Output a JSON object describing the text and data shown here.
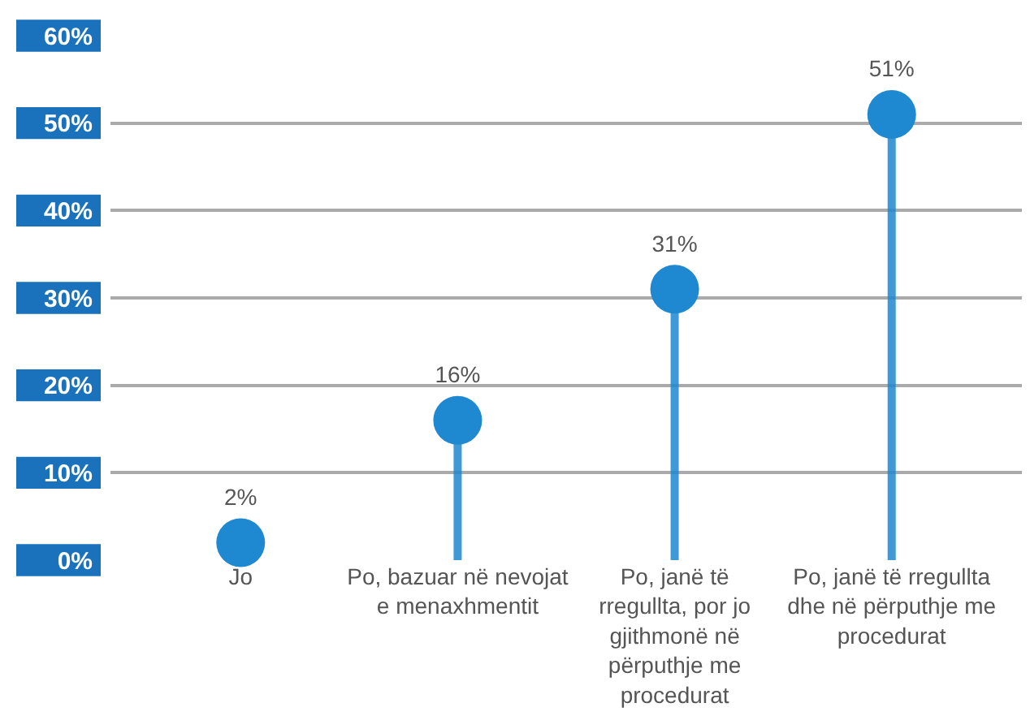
{
  "chart_data": {
    "type": "lollipop",
    "categories": [
      "Jo",
      "Po, bazuar në nevojat e menaxhmentit",
      "Po, janë të rregullta, por jo gjithmonë në përputhje me procedurat",
      "Po, janë të rregullta dhe në përputhje me procedurat"
    ],
    "values": [
      2,
      16,
      31,
      51
    ],
    "color": "#1e88d0",
    "ylim": [
      0,
      60
    ],
    "yticks": [
      {
        "value": 0,
        "label": "0%"
      },
      {
        "value": 10,
        "label": "10%"
      },
      {
        "value": 20,
        "label": "20%"
      },
      {
        "value": 30,
        "label": "30%"
      },
      {
        "value": 40,
        "label": "40%"
      },
      {
        "value": 50,
        "label": "50%"
      },
      {
        "value": 60,
        "label": "60%"
      }
    ],
    "value_labels": [
      "2%",
      "16%",
      "31%",
      "51%"
    ],
    "grid": "y",
    "marker": "circle"
  }
}
